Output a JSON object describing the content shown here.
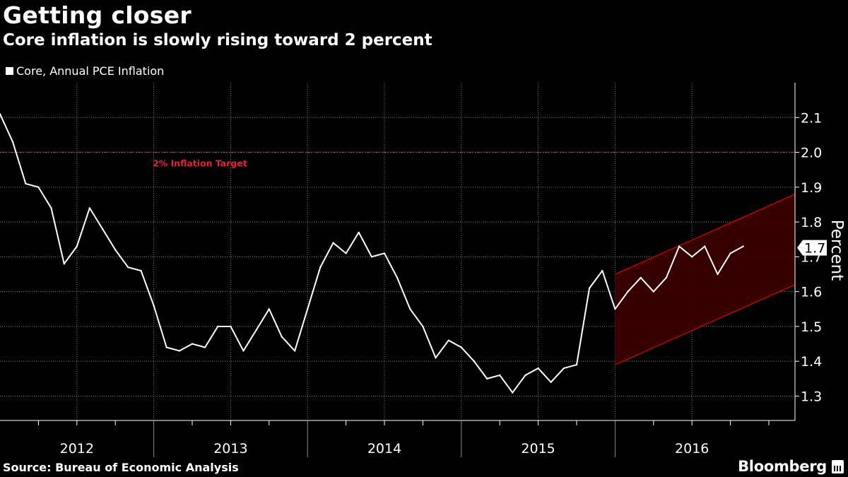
{
  "title": "Getting closer",
  "subtitle": "Core inflation is slowly rising toward 2 percent",
  "source": "Source: Bureau of Economic Analysis",
  "brand": "Bloomberg",
  "colors": {
    "background": "#000000",
    "line": "#ffffff",
    "target": "#e8203a",
    "channel_fill": "#3a0000",
    "channel_edge": "#e00000"
  },
  "chart_data": {
    "type": "line",
    "series": [
      {
        "name": "Core, Annual PCE Inflation",
        "x": [
          2012.0,
          2012.083,
          2012.167,
          2012.25,
          2012.333,
          2012.417,
          2012.5,
          2012.583,
          2012.667,
          2012.75,
          2012.833,
          2012.917,
          2013.0,
          2013.083,
          2013.167,
          2013.25,
          2013.333,
          2013.417,
          2013.5,
          2013.583,
          2013.667,
          2013.75,
          2013.833,
          2013.917,
          2014.0,
          2014.083,
          2014.167,
          2014.25,
          2014.333,
          2014.417,
          2014.5,
          2014.583,
          2014.667,
          2014.75,
          2014.833,
          2014.917,
          2015.0,
          2015.083,
          2015.167,
          2015.25,
          2015.333,
          2015.417,
          2015.5,
          2015.583,
          2015.667,
          2015.75,
          2015.833,
          2015.917,
          2016.0,
          2016.083,
          2016.167,
          2016.25,
          2016.333,
          2016.417,
          2016.5,
          2016.583,
          2016.667,
          2016.75,
          2016.833,
          2016.917
        ],
        "values": [
          2.11,
          2.03,
          1.91,
          1.9,
          1.84,
          1.68,
          1.73,
          1.84,
          1.78,
          1.72,
          1.67,
          1.66,
          1.56,
          1.44,
          1.43,
          1.45,
          1.44,
          1.5,
          1.5,
          1.43,
          1.49,
          1.55,
          1.47,
          1.43,
          1.55,
          1.67,
          1.74,
          1.71,
          1.77,
          1.7,
          1.71,
          1.64,
          1.55,
          1.5,
          1.41,
          1.46,
          1.44,
          1.4,
          1.35,
          1.36,
          1.31,
          1.36,
          1.38,
          1.34,
          1.38,
          1.39,
          1.61,
          1.66,
          1.55,
          1.6,
          1.64,
          1.6,
          1.64,
          1.73,
          1.7,
          1.73,
          1.65,
          1.71,
          1.73,
          null
        ]
      }
    ],
    "last_value_label": "1.7",
    "target": {
      "value": 2.0,
      "label": "2% Inflation Target"
    },
    "channel": {
      "x_start": 2016.0,
      "x_end": 2017.17,
      "lower": [
        1.39,
        1.62
      ],
      "upper": [
        1.65,
        1.88
      ]
    },
    "x_ticks": [
      "2012",
      "2013",
      "2014",
      "2015",
      "2016"
    ],
    "xlim": [
      2012.0,
      2017.17
    ],
    "y_ticks": [
      "1.3",
      "1.4",
      "1.5",
      "1.6",
      "1.7",
      "1.8",
      "1.9",
      "2.0",
      "2.1"
    ],
    "ylim": [
      1.23,
      2.2
    ],
    "ylabel": "Percent",
    "legend": "Core, Annual PCE Inflation",
    "grid": true
  }
}
